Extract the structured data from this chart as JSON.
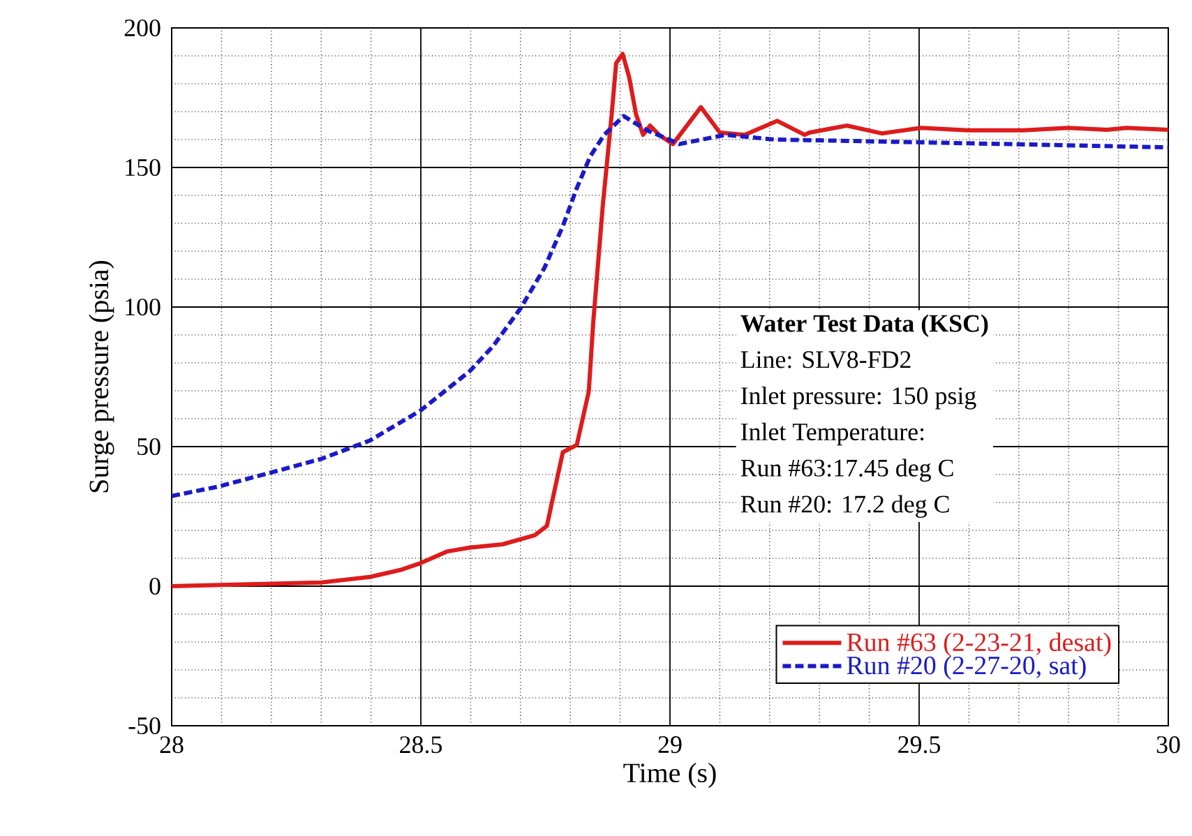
{
  "chart_data": {
    "type": "line",
    "xlabel": "Time (s)",
    "ylabel": "Surge pressure (psia)",
    "xlim": [
      28,
      30
    ],
    "ylim": [
      -50,
      200
    ],
    "xticks": [
      28,
      28.5,
      29,
      29.5,
      30
    ],
    "yticks": [
      -50,
      0,
      50,
      100,
      150,
      200
    ],
    "grid": true,
    "legend": "bottom right",
    "annotations": [
      "Water Test Data (KSC)",
      "Line: SLV8-FD2",
      "Inlet pressure: 150 psig",
      "Inlet Temperature:",
      "Run #63:17.45 deg C",
      "Run #20: 17.2 deg C"
    ],
    "series": [
      {
        "name": "Run #63 (2-23-21, desat)",
        "color": "#dd1c1c",
        "line_style": "solid",
        "x": [
          28.0,
          28.3,
          28.398,
          28.459,
          28.5,
          28.552,
          28.598,
          28.664,
          28.729,
          28.753,
          28.771,
          28.785,
          28.813,
          28.837,
          28.846,
          28.865,
          28.883,
          28.892,
          28.905,
          28.918,
          28.932,
          28.946,
          28.96,
          28.978,
          29.006,
          29.062,
          29.1,
          29.15,
          29.215,
          29.27,
          29.28,
          29.355,
          29.425,
          29.504,
          29.598,
          29.709,
          29.8,
          29.877,
          29.916,
          30.0
        ],
        "values": [
          0,
          1.3,
          3.3,
          5.8,
          8.3,
          12.4,
          13.8,
          15,
          18.3,
          21.6,
          36.5,
          48,
          50.6,
          69.7,
          94.5,
          136,
          169,
          187.4,
          190.7,
          182.4,
          169,
          161.7,
          165,
          161.7,
          158.4,
          171.6,
          162.5,
          161.7,
          166.7,
          161.7,
          162.5,
          165,
          162.2,
          164.2,
          163.3,
          163.3,
          164.2,
          163.5,
          164.2,
          163.5
        ]
      },
      {
        "name": "Run #20 (2-27-20, sat)",
        "color": "#1a1ac8",
        "line_style": "dashed",
        "x": [
          28.0,
          28.094,
          28.197,
          28.3,
          28.398,
          28.5,
          28.598,
          28.645,
          28.7,
          28.748,
          28.785,
          28.813,
          28.84,
          28.868,
          28.907,
          28.953,
          29.019,
          29.112,
          29.21,
          29.364,
          29.784,
          30.0
        ],
        "values": [
          32.3,
          35.7,
          40.6,
          45.6,
          52.2,
          63,
          77,
          86,
          99.5,
          114,
          129,
          142.6,
          154,
          161.7,
          168.4,
          163.4,
          158.4,
          161.7,
          160,
          159.5,
          158,
          157.2
        ]
      }
    ]
  }
}
